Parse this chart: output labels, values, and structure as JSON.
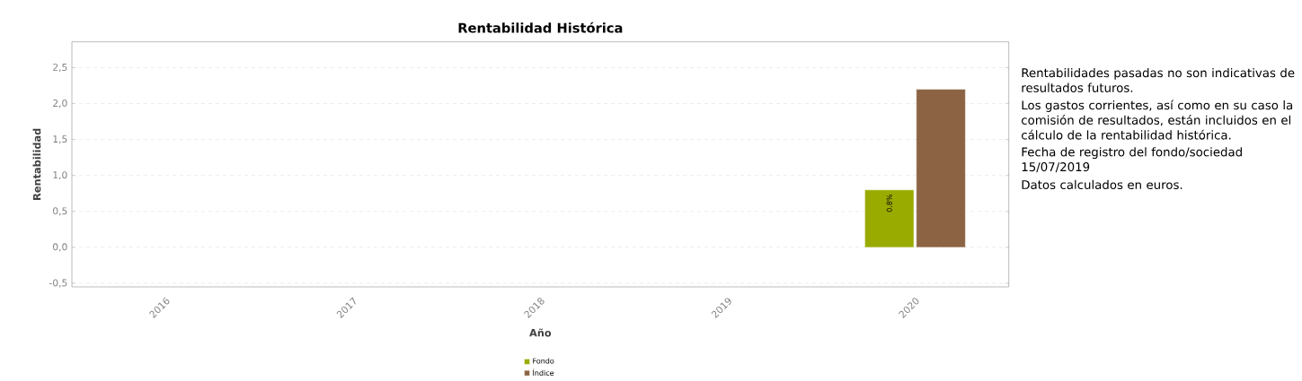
{
  "chart_data": {
    "type": "bar",
    "title": "Rentabilidad Histórica",
    "xlabel": "Año",
    "ylabel": "Rentabilidad",
    "categories": [
      "2016",
      "2017",
      "2018",
      "2019",
      "2020"
    ],
    "series": [
      {
        "name": "Fondo",
        "color": "#9aab00",
        "values": [
          null,
          null,
          null,
          null,
          0.8
        ],
        "value_labels": [
          null,
          null,
          null,
          null,
          "0.8%"
        ]
      },
      {
        "name": "Índice",
        "color": "#8c6443",
        "values": [
          null,
          null,
          null,
          null,
          2.2
        ]
      }
    ],
    "ylim": [
      -0.55,
      2.86
    ],
    "yticks": [
      {
        "value": -0.5,
        "label": "-0,5"
      },
      {
        "value": 0,
        "label": "0,0"
      },
      {
        "value": 0.5,
        "label": "0,5"
      },
      {
        "value": 1,
        "label": "1,0"
      },
      {
        "value": 1.5,
        "label": "1,5"
      },
      {
        "value": 2,
        "label": "2,0"
      },
      {
        "value": 2.5,
        "label": "2,5"
      }
    ],
    "grid": "y",
    "legend": "bottom",
    "annotations": [
      "Rentabilidades pasadas no son indicativas de resultados futuros.",
      "Los gastos corrientes, así como en su caso la comisión de resultados, están incluidos en el cálculo de la rentabilidad histórica.",
      "Fecha de registro del fondo/sociedad 15/07/2019",
      "Datos calculados en euros."
    ]
  }
}
